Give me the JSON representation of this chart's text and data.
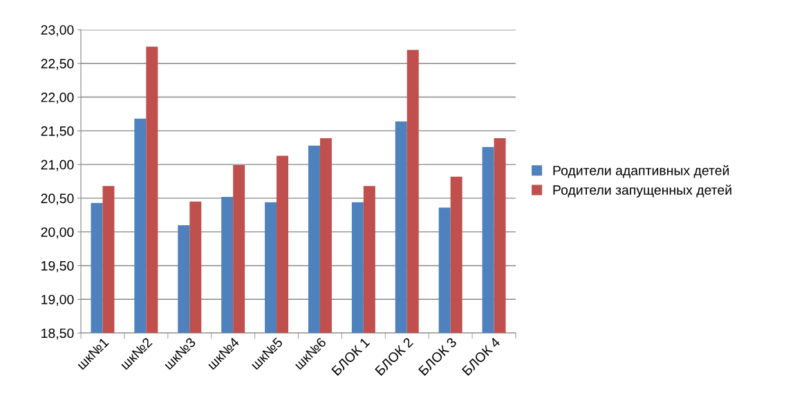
{
  "chart_data": {
    "type": "bar",
    "categories": [
      "шк№1",
      "шк№2",
      "шк№3",
      "шк№4",
      "шк№5",
      "шк№6",
      "БЛОК 1",
      "БЛОК 2",
      "БЛОК 3",
      "БЛОК 4"
    ],
    "series": [
      {
        "name": "Родители адаптивных детей",
        "color": "#4f81bd",
        "values": [
          20.43,
          21.68,
          20.1,
          20.52,
          20.44,
          21.28,
          20.44,
          21.64,
          20.36,
          21.26
        ]
      },
      {
        "name": "Родители запущенных детей",
        "color": "#c0504d",
        "values": [
          20.68,
          22.75,
          20.45,
          20.99,
          21.13,
          21.39,
          20.68,
          22.7,
          20.82,
          21.39
        ]
      }
    ],
    "ylim": [
      18.5,
      23
    ],
    "yticks": [
      {
        "value": 18.5,
        "label": "18,50"
      },
      {
        "value": 19,
        "label": "19,00"
      },
      {
        "value": 19.5,
        "label": "19,50"
      },
      {
        "value": 20,
        "label": "20,00"
      },
      {
        "value": 20.5,
        "label": "20,50"
      },
      {
        "value": 21,
        "label": "21,00"
      },
      {
        "value": 21.5,
        "label": "21,50"
      },
      {
        "value": 22,
        "label": "22,00"
      },
      {
        "value": 22.5,
        "label": "22,50"
      },
      {
        "value": 23,
        "label": "23,00"
      }
    ],
    "grid": "y",
    "legend": "right"
  }
}
